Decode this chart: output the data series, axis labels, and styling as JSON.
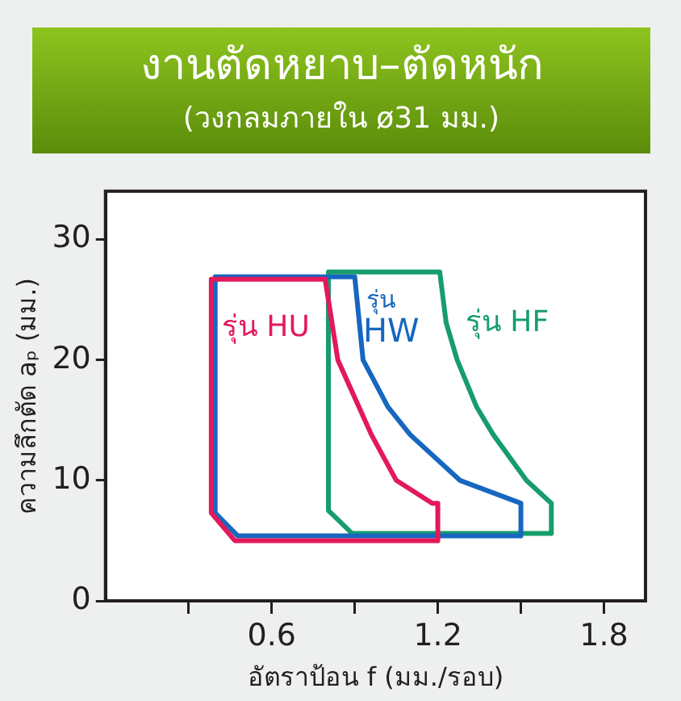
{
  "chart_data": {
    "type": "line",
    "title": "งานตัดหยาบ–ตัดหนัก",
    "subtitle": "(วงกลมภายใน ø31 มม.)",
    "xlabel": "อัตราป้อน f (มม./รอบ)",
    "ylabel": "ความลึกตัด aₚ (มม.)",
    "xlim": [
      0,
      1.95
    ],
    "xticks": [
      {
        "value": 0.3,
        "label": null
      },
      0.6,
      {
        "value": 0.9,
        "label": null
      },
      1.2,
      {
        "value": 1.5,
        "label": null
      },
      1.8
    ],
    "ylim": [
      0,
      34
    ],
    "yticks": [
      0,
      10,
      20,
      30
    ],
    "grid": false,
    "legend": false,
    "marker": "none",
    "line_style": "solid",
    "series": [
      {
        "name": "รุ่น HU",
        "color": "#e2195b",
        "x": [
          0.382,
          0.793,
          0.839,
          0.96,
          1.05,
          1.18,
          1.2,
          1.2
        ],
        "values": [
          26.7,
          26.7,
          20,
          13.8,
          10,
          8.1,
          8.1,
          5
        ]
      },
      {
        "color": "#e2195b",
        "x": [
          0.382,
          0.382,
          0.467,
          1.2
        ],
        "values": [
          26.7,
          7.3,
          5,
          5
        ]
      },
      {
        "name": "รุ่น HW",
        "color": "#1767c0",
        "x": [
          0.396,
          0.9,
          0.93,
          1.02,
          1.1,
          1.28,
          1.5,
          1.5
        ],
        "values": [
          26.9,
          26.9,
          20,
          16.1,
          13.8,
          10,
          8.1,
          5.4
        ]
      },
      {
        "color": "#1767c0",
        "x": [
          0.396,
          0.396,
          0.477,
          1.5
        ],
        "values": [
          26.9,
          7.3,
          5.4,
          5.4
        ]
      },
      {
        "name": "รุ่น HF",
        "color": "#179d6c",
        "x": [
          0.805,
          1.207,
          1.23,
          1.27,
          1.34,
          1.4,
          1.52,
          1.61,
          1.61
        ],
        "values": [
          27.3,
          27.3,
          23.1,
          20,
          16.1,
          13.8,
          10,
          8.1,
          5.6
        ]
      },
      {
        "color": "#179d6c",
        "x": [
          0.805,
          0.805,
          0.89,
          1.61
        ],
        "values": [
          27.3,
          7.5,
          5.6,
          5.6
        ]
      }
    ]
  }
}
